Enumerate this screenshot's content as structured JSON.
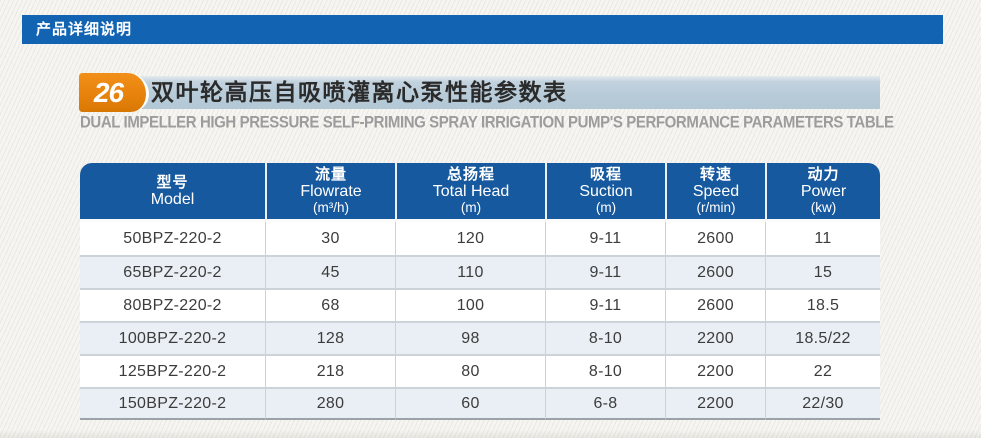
{
  "top_bar": {
    "title": "产品详细说明"
  },
  "header": {
    "index_number": "26",
    "title_cn": "双叶轮高压自吸喷灌离心泵性能参数表",
    "subtitle_en": "DUAL IMPELLER HIGH PRESSURE SELF-PRIMING SPRAY IRRIGATION PUMP'S PERFORMANCE PARAMETERS TABLE"
  },
  "table": {
    "columns": [
      {
        "label_cn": "型号",
        "label_en": "Model",
        "unit": ""
      },
      {
        "label_cn": "流量",
        "label_en": "Flowrate",
        "unit": "(m³/h)"
      },
      {
        "label_cn": "总扬程",
        "label_en": "Total Head",
        "unit": "(m)"
      },
      {
        "label_cn": "吸程",
        "label_en": "Suction",
        "unit": "(m)"
      },
      {
        "label_cn": "转速",
        "label_en": "Speed",
        "unit": "(r/min)"
      },
      {
        "label_cn": "动力",
        "label_en": "Power",
        "unit": "(kw)"
      }
    ],
    "rows": [
      {
        "model": "50BPZ-220-2",
        "flowrate": "30",
        "total_head": "120",
        "suction": "9-11",
        "speed": "2600",
        "power": "11"
      },
      {
        "model": "65BPZ-220-2",
        "flowrate": "45",
        "total_head": "110",
        "suction": "9-11",
        "speed": "2600",
        "power": "15"
      },
      {
        "model": "80BPZ-220-2",
        "flowrate": "68",
        "total_head": "100",
        "suction": "9-11",
        "speed": "2600",
        "power": "18.5"
      },
      {
        "model": "100BPZ-220-2",
        "flowrate": "128",
        "total_head": "98",
        "suction": "8-10",
        "speed": "2200",
        "power": "18.5/22"
      },
      {
        "model": "125BPZ-220-2",
        "flowrate": "218",
        "total_head": "80",
        "suction": "8-10",
        "speed": "2200",
        "power": "22"
      },
      {
        "model": "150BPZ-220-2",
        "flowrate": "280",
        "total_head": "60",
        "suction": "6-8",
        "speed": "2200",
        "power": "22/30"
      }
    ]
  },
  "colors": {
    "top_bar_blue": "#1264b3",
    "table_header_blue": "#17599e",
    "title_band_blue": "#b7cbd8",
    "badge_orange": "#e8830d",
    "stripe_row": "#e9eff4",
    "subtitle_gray": "#9c9c9c",
    "page_background": "#f2f1ec"
  }
}
